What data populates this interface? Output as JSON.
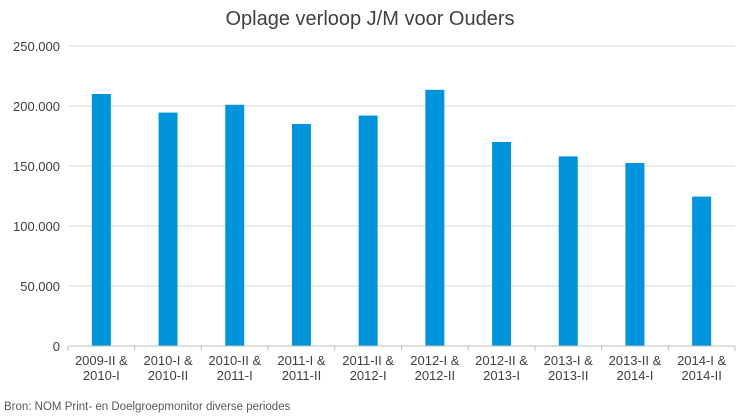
{
  "chart_data": {
    "type": "bar",
    "title": "Oplage verloop J/M voor Ouders",
    "categories": [
      [
        "2009-II &",
        "2010-I"
      ],
      [
        "2010-I &",
        "2010-II"
      ],
      [
        "2010-II &",
        "2011-I"
      ],
      [
        "2011-I &",
        "2011-II"
      ],
      [
        "2011-II &",
        "2012-I"
      ],
      [
        "2012-I &",
        "2012-II"
      ],
      [
        "2012-II &",
        "2013-I"
      ],
      [
        "2013-I &",
        "2013-II"
      ],
      [
        "2013-II &",
        "2014-I"
      ],
      [
        "2014-I &",
        "2014-II"
      ]
    ],
    "values": [
      210000,
      194500,
      201000,
      185000,
      192000,
      213500,
      170000,
      158000,
      152500,
      124500
    ],
    "ylim": [
      0,
      250000
    ],
    "yticks": [
      0,
      50000,
      100000,
      150000,
      200000,
      250000
    ],
    "ytick_labels": [
      "0",
      "50.000",
      "100.000",
      "150.000",
      "200.000",
      "250.000"
    ],
    "xlabel": "",
    "ylabel": "",
    "grid": true,
    "legend": "none",
    "bar_color": "#0095DA",
    "grid_color": "#D9D9D9",
    "axis_color": "#BFBFBF",
    "source": "Bron: NOM Print- en Doelgroepmonitor diverse periodes"
  }
}
